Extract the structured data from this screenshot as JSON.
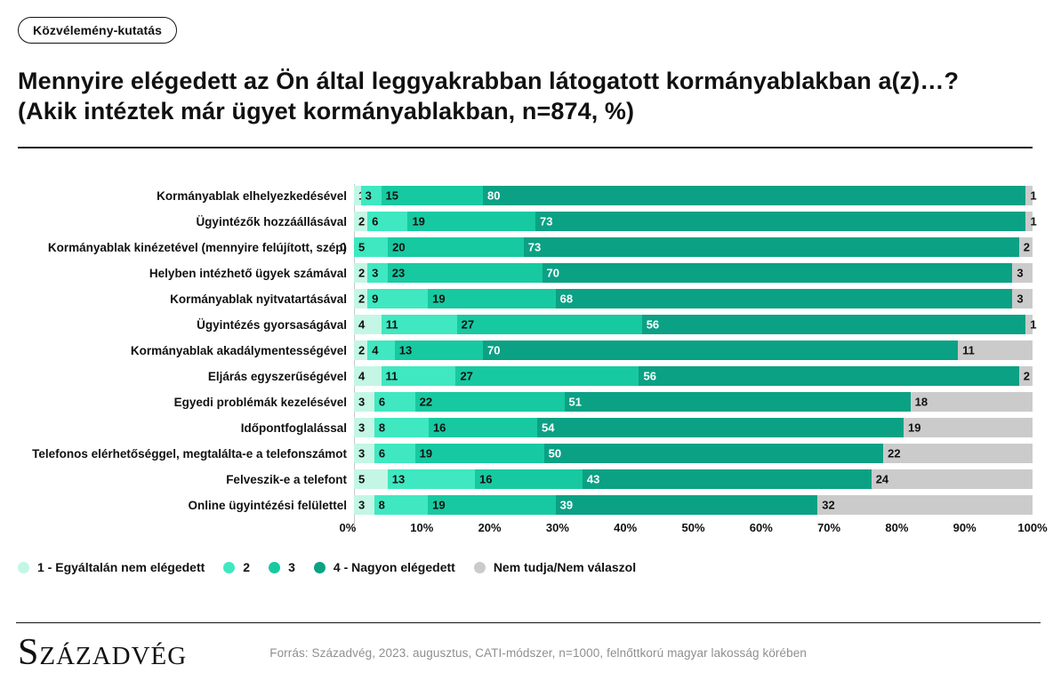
{
  "badge": "Közvélemény-kutatás",
  "title_line1": "Mennyire elégedett az Ön által leggyakrabban látogatott kormányablakban a(z)…?",
  "title_line2": "(Akik intéztek már ügyet kormányablakban, n=874, %)",
  "chart_data": {
    "type": "bar",
    "orientation": "horizontal",
    "stacked": true,
    "unit": "%",
    "xlim": [
      0,
      100
    ],
    "x_ticks": [
      "0%",
      "10%",
      "20%",
      "30%",
      "40%",
      "50%",
      "60%",
      "70%",
      "80%",
      "90%",
      "100%"
    ],
    "legend_position": "bottom",
    "categories": [
      "Kormányablak elhelyezkedésével",
      "Ügyintézők hozzáállásával",
      "Kormányablak kinézetével (mennyire felújított, szép)",
      "Helyben intézhető ügyek számával",
      "Kormányablak nyitvatartásával",
      "Ügyintézés gyorsaságával",
      "Kormányablak akadálymentességével",
      "Eljárás egyszerűségével",
      "Egyedi problémák kezelésével",
      "Időpontfoglalással",
      "Telefonos elérhetőséggel, megtalálta-e a telefonszámot",
      "Felveszik-e a telefont",
      "Online ügyintézési felülettel"
    ],
    "series": [
      {
        "name": "1 - Egyáltalán nem elégedett",
        "color": "#c4f6e5",
        "label_color": "#111111",
        "values": [
          1,
          2,
          0,
          2,
          2,
          4,
          2,
          4,
          3,
          3,
          3,
          5,
          3
        ]
      },
      {
        "name": "2",
        "color": "#3fe8c0",
        "label_color": "#111111",
        "values": [
          3,
          6,
          5,
          3,
          9,
          11,
          4,
          11,
          6,
          8,
          6,
          13,
          8
        ]
      },
      {
        "name": "3",
        "color": "#17c9a1",
        "label_color": "#111111",
        "values": [
          15,
          19,
          20,
          23,
          19,
          27,
          13,
          27,
          22,
          16,
          19,
          16,
          19
        ]
      },
      {
        "name": "4 - Nagyon elégedett",
        "color": "#0ba184",
        "label_color": "#ffffff",
        "values": [
          80,
          73,
          73,
          70,
          68,
          56,
          70,
          56,
          51,
          54,
          50,
          43,
          39
        ]
      },
      {
        "name": "Nem tudja/Nem válaszol",
        "color": "#cbcbcb",
        "label_color": "#111111",
        "values": [
          1,
          1,
          2,
          3,
          3,
          1,
          11,
          2,
          18,
          19,
          22,
          24,
          32
        ]
      }
    ]
  },
  "footer": {
    "logo_text": "Századvég",
    "source": "Forrás: Századvég, 2023. augusztus, CATI-módszer, n=1000, felnőttkorú magyar lakosság körében"
  }
}
